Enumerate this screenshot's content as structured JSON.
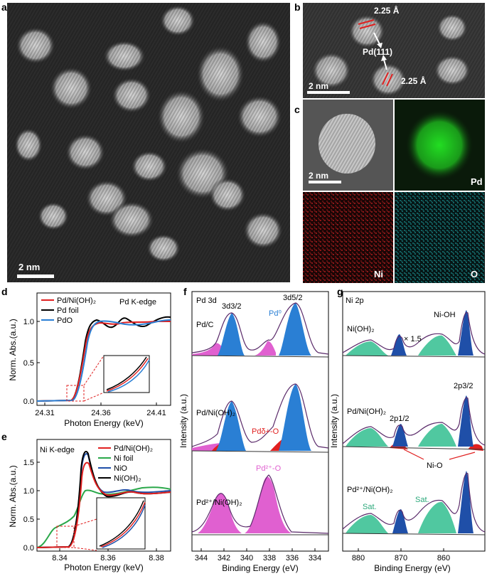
{
  "panels": {
    "a": {
      "letter": "a",
      "scalebar": "2 nm"
    },
    "b": {
      "letter": "b",
      "spacing_top": "2.25 Å",
      "spacing_bottom": "2.25 Å",
      "plane": "Pd(111)",
      "scalebar": "2 nm"
    },
    "c": {
      "letter": "c",
      "scalebar": "2 nm",
      "map_pd": "Pd",
      "map_ni": "Ni",
      "map_o": "O"
    },
    "d": {
      "letter": "d",
      "edge": "Pd K-edge",
      "legend": [
        "Pd/Ni(OH)₂",
        "Pd foil",
        "PdO"
      ],
      "ylabel": "Norm. Abs.(a.u.)",
      "xlabel": "Photon Energy (keV)",
      "xticks": [
        "24.31",
        "24.36",
        "24.41"
      ],
      "yticks": [
        "0.0",
        "0.5",
        "1.0"
      ]
    },
    "e": {
      "letter": "e",
      "edge": "Ni K-edge",
      "legend": [
        "Pd/Ni(OH)₂",
        "Ni foil",
        "NiO",
        "Ni(OH)₂"
      ],
      "ylabel": "Norm. Abs.(a.u.)",
      "xlabel": "Photon Energy (keV)",
      "xticks": [
        "8.34",
        "8.36",
        "8.38"
      ],
      "yticks": [
        "0.0",
        "0.5",
        "1.0",
        "1.5"
      ]
    },
    "f": {
      "letter": "f",
      "title": "Pd 3d",
      "peak_32": "3d3/2",
      "peak_52": "3d5/2",
      "samples": [
        "Pd/C",
        "Pd/Ni(OH)₂",
        "Pd²⁺/Ni(OH)₂"
      ],
      "ann_pd0": "Pd⁰",
      "ann_pdd": "Pdδ+-O",
      "ann_pd2": "Pd²⁺-O",
      "ylabel": "Intensity (a.u.)",
      "xlabel": "Binding Energy (eV)",
      "xticks": [
        "344",
        "342",
        "340",
        "338",
        "336",
        "334"
      ]
    },
    "g": {
      "letter": "g",
      "title": "Ni 2p",
      "samples": [
        "Ni(OH)₂",
        "Pd/Ni(OH)₂",
        "Pd²⁺/Ni(OH)₂"
      ],
      "ann_nioh": "Ni-OH",
      "ann_x15": "× 1.5",
      "ann_2p32": "2p3/2",
      "ann_2p12": "2p1/2",
      "ann_nio": "Ni-O",
      "ann_sat1": "Sat.",
      "ann_sat2": "Sat.",
      "ylabel": "Intensity (a.u.)",
      "xlabel": "Binding Energy (eV)",
      "xticks": [
        "880",
        "870",
        "860"
      ]
    }
  },
  "colors": {
    "red": "#e02020",
    "black": "#000000",
    "blue": "#2a7fd4",
    "green": "#2aa84a",
    "navy": "#1f4fa8",
    "pink": "#e060d0",
    "teal": "#50c8a0",
    "pdmap": "#22cc22",
    "nimap": "#dd2222",
    "omap": "#22bbbb"
  }
}
